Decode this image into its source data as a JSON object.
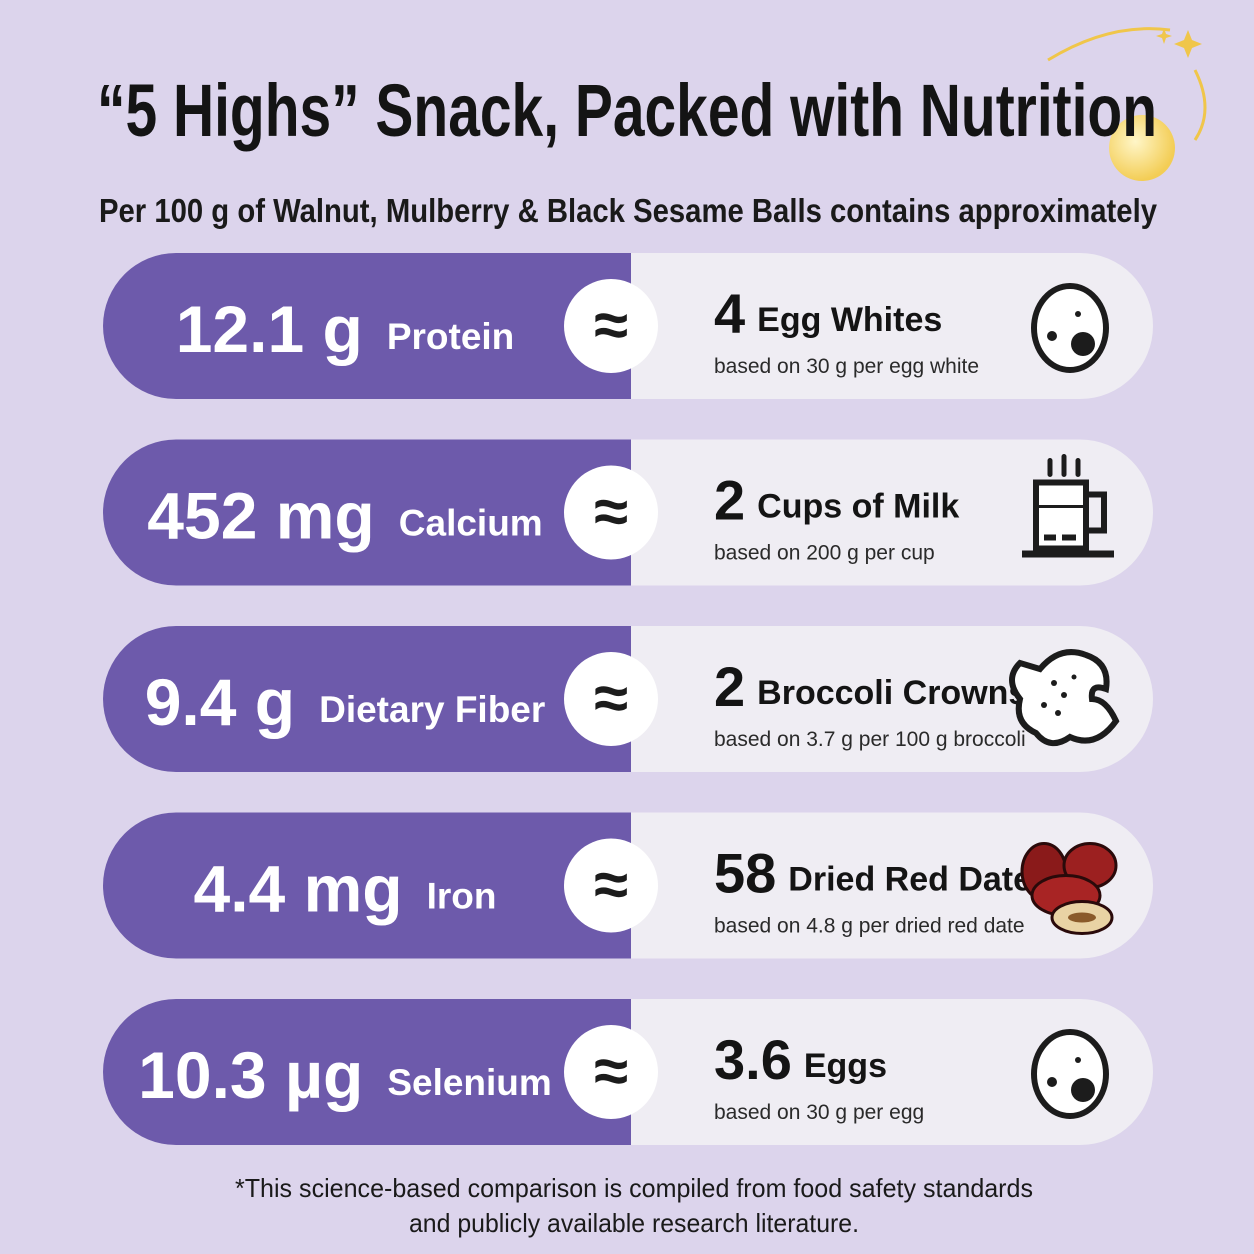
{
  "title": "“5 Highs” Snack, Packed with Nutrition",
  "subtitle": "Per 100 g of Walnut, Mulberry & Black Sesame Balls contains approximately",
  "approx_symbol": "≈",
  "rows": [
    {
      "amount": "12.1 g",
      "nutrient": "Protein",
      "count": "4",
      "equivalent": "Egg Whites",
      "basis": "based on 30 g per egg white"
    },
    {
      "amount": "452 mg",
      "nutrient": "Calcium",
      "count": "2",
      "equivalent": "Cups of Milk",
      "basis": "based on 200 g per cup"
    },
    {
      "amount": "9.4 g",
      "nutrient": "Dietary Fiber",
      "count": "2",
      "equivalent": "Broccoli Crowns",
      "basis": "based on 3.7 g per 100 g broccoli"
    },
    {
      "amount": "4.4 mg",
      "nutrient": "Iron",
      "count": "58",
      "equivalent": "Dried Red Dates",
      "basis": "based on 4.8 g per dried red date"
    },
    {
      "amount": "10.3 µg",
      "nutrient": "Selenium",
      "count": "3.6",
      "equivalent": "Eggs",
      "basis": "based on 30 g per egg"
    }
  ],
  "footnote": [
    "*This science-based comparison is compiled from food safety standards",
    "and publicly available research literature."
  ]
}
